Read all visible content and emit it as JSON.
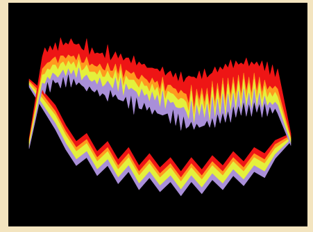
{
  "chart_data": {
    "type": "area",
    "title": "",
    "xlabel": "",
    "ylabel": "",
    "style": "stacked stream bands forming a closed loop on black background",
    "colors": {
      "background": "#000000",
      "frame": "#f3e4bf",
      "layers": [
        "#ee1515",
        "#ff9a1e",
        "#e4f03c",
        "#a98fd8"
      ]
    },
    "x_range": [
      0,
      100
    ],
    "y_range": [
      0,
      100
    ],
    "upper_band": {
      "x": [
        0,
        5,
        6,
        7,
        8,
        9,
        10,
        11,
        12,
        13,
        14,
        15,
        16,
        17,
        18,
        19,
        20,
        21,
        22,
        23,
        24,
        25,
        26,
        27,
        28,
        29,
        30,
        31,
        32,
        33,
        34,
        35,
        36,
        37,
        38,
        39,
        40,
        41,
        42,
        43,
        44,
        45,
        46,
        47,
        48,
        49,
        50,
        51,
        52,
        53,
        54,
        55,
        56,
        57,
        58,
        59,
        60,
        61,
        62,
        63,
        64,
        65,
        66,
        67,
        68,
        69,
        70,
        71,
        72,
        73,
        74,
        75,
        76,
        77,
        78,
        79,
        80,
        81,
        82,
        83,
        84,
        85,
        86,
        87,
        88,
        89,
        90,
        91,
        92,
        93,
        94,
        95,
        100
      ],
      "center": [
        35,
        70,
        71,
        73,
        72,
        74,
        75,
        73,
        75,
        76,
        74,
        77,
        75,
        76,
        74,
        75,
        73,
        72,
        74,
        71,
        72,
        70,
        71,
        69,
        70,
        68,
        70,
        69,
        68,
        70,
        67,
        68,
        66,
        68,
        65,
        67,
        64,
        66,
        64,
        63,
        65,
        62,
        63,
        61,
        62,
        61,
        60,
        61,
        59,
        60,
        58,
        60,
        57,
        58,
        56,
        57,
        55,
        56,
        57,
        55,
        56,
        57,
        55,
        58,
        57,
        56,
        59,
        58,
        60,
        59,
        61,
        60,
        62,
        61,
        63,
        62,
        64,
        62,
        65,
        63,
        64,
        62,
        65,
        63,
        64,
        62,
        63,
        62,
        61,
        62,
        60,
        61,
        37
      ],
      "red": [
        1,
        6,
        9,
        5,
        8,
        4,
        7,
        6,
        9,
        5,
        8,
        5,
        9,
        6,
        8,
        5,
        7,
        6,
        9,
        5,
        8,
        6,
        7,
        5,
        8,
        6,
        9,
        5,
        7,
        6,
        8,
        5,
        9,
        6,
        7,
        5,
        8,
        6,
        9,
        5,
        7,
        6,
        8,
        5,
        7,
        6,
        9,
        5,
        8,
        6,
        7,
        5,
        8,
        6,
        9,
        5,
        8,
        14,
        4,
        16,
        5,
        15,
        4,
        17,
        5,
        16,
        4,
        18,
        5,
        17,
        4,
        19,
        5,
        18,
        4,
        17,
        5,
        16,
        4,
        17,
        5,
        16,
        4,
        15,
        5,
        16,
        4,
        14,
        5,
        12,
        4,
        10,
        2
      ],
      "orange": [
        1,
        3,
        4,
        3,
        4,
        3,
        4,
        3,
        4,
        3,
        4,
        3,
        4,
        3,
        4,
        3,
        4,
        3,
        4,
        3,
        4,
        3,
        4,
        3,
        4,
        3,
        4,
        3,
        4,
        3,
        4,
        3,
        4,
        3,
        4,
        3,
        4,
        3,
        4,
        3,
        4,
        3,
        4,
        3,
        4,
        3,
        4,
        3,
        4,
        3,
        4,
        3,
        4,
        3,
        4,
        3,
        4,
        4,
        3,
        4,
        3,
        4,
        3,
        4,
        3,
        4,
        3,
        4,
        3,
        4,
        3,
        4,
        3,
        4,
        3,
        4,
        3,
        4,
        3,
        4,
        3,
        4,
        3,
        4,
        3,
        4,
        3,
        4,
        3,
        4,
        3,
        4,
        1
      ],
      "yellow": [
        2,
        4,
        5,
        4,
        5,
        4,
        5,
        4,
        5,
        4,
        5,
        4,
        5,
        4,
        5,
        4,
        5,
        4,
        5,
        4,
        5,
        4,
        5,
        4,
        5,
        4,
        5,
        4,
        5,
        4,
        5,
        4,
        5,
        4,
        5,
        4,
        5,
        4,
        5,
        4,
        5,
        4,
        5,
        4,
        5,
        4,
        5,
        4,
        5,
        4,
        5,
        4,
        5,
        4,
        5,
        4,
        5,
        4,
        5,
        4,
        5,
        4,
        5,
        4,
        5,
        4,
        5,
        4,
        5,
        4,
        5,
        4,
        5,
        4,
        5,
        4,
        5,
        4,
        5,
        4,
        5,
        4,
        5,
        4,
        5,
        4,
        5,
        4,
        5,
        4,
        5,
        4,
        2
      ],
      "purple": [
        1,
        3,
        5,
        2,
        6,
        3,
        4,
        2,
        7,
        3,
        5,
        2,
        6,
        4,
        3,
        7,
        2,
        5,
        8,
        3,
        4,
        6,
        2,
        9,
        3,
        5,
        10,
        2,
        4,
        8,
        3,
        11,
        2,
        6,
        9,
        3,
        12,
        2,
        5,
        10,
        3,
        8,
        2,
        11,
        4,
        9,
        3,
        12,
        2,
        7,
        10,
        3,
        9,
        2,
        11,
        4,
        8,
        3,
        10,
        2,
        9,
        5,
        11,
        3,
        8,
        2,
        10,
        4,
        7,
        3,
        9,
        2,
        8,
        5,
        6,
        3,
        7,
        2,
        6,
        4,
        5,
        3,
        6,
        2,
        5,
        4,
        3,
        5,
        2,
        4,
        3,
        4,
        1
      ]
    },
    "lower_band": {
      "x": [
        0,
        5,
        10,
        14,
        18,
        22,
        26,
        30,
        34,
        38,
        42,
        46,
        50,
        54,
        58,
        62,
        66,
        70,
        74,
        78,
        82,
        86,
        90,
        94,
        100
      ],
      "center": [
        65,
        57,
        48,
        38,
        30,
        34,
        25,
        30,
        21,
        27,
        18,
        24,
        17,
        22,
        15,
        22,
        16,
        23,
        18,
        25,
        20,
        27,
        24,
        32,
        38
      ],
      "red": [
        1,
        2,
        3,
        3,
        3,
        3,
        3,
        3,
        3,
        3,
        3,
        3,
        3,
        3,
        3,
        3,
        3,
        3,
        3,
        3,
        3,
        3,
        3,
        2,
        1
      ],
      "orange": [
        1,
        2,
        2,
        2,
        2,
        2,
        2,
        2,
        2,
        2,
        2,
        2,
        2,
        2,
        2,
        2,
        2,
        2,
        2,
        2,
        2,
        2,
        2,
        2,
        1
      ],
      "yellow": [
        1,
        3,
        4,
        4,
        4,
        4,
        4,
        4,
        4,
        4,
        4,
        4,
        4,
        4,
        4,
        4,
        4,
        4,
        4,
        4,
        4,
        4,
        4,
        3,
        1
      ],
      "purple": [
        1,
        2,
        3,
        3,
        3,
        3,
        3,
        3,
        3,
        3,
        3,
        3,
        3,
        3,
        3,
        3,
        3,
        3,
        3,
        3,
        3,
        3,
        3,
        2,
        1
      ]
    }
  }
}
